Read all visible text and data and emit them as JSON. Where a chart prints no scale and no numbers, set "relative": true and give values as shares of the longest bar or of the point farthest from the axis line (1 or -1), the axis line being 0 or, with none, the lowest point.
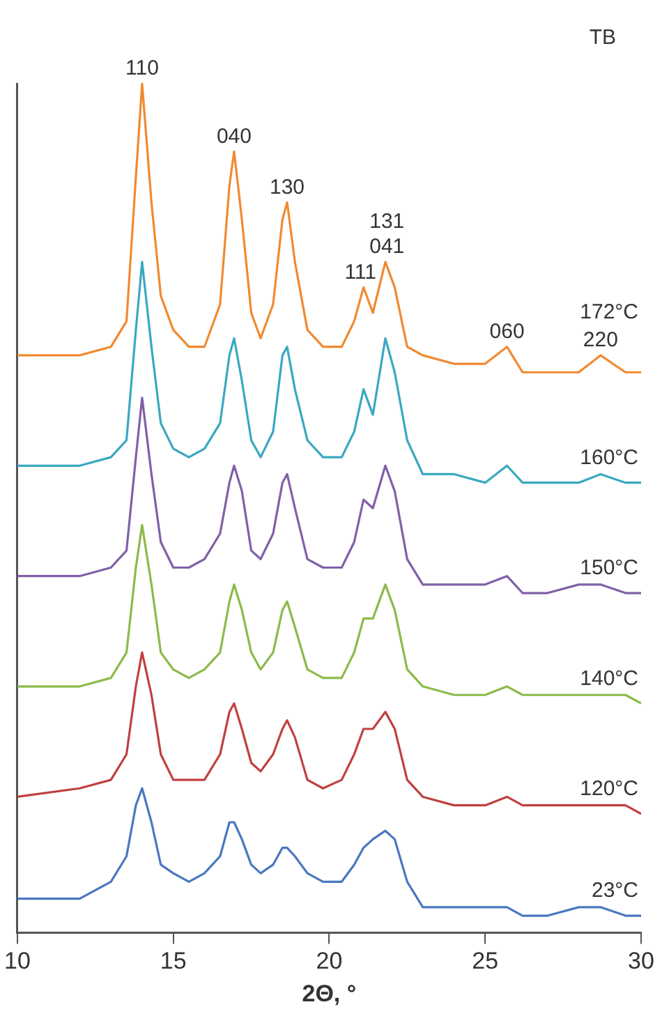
{
  "chart_data": {
    "type": "line",
    "relative": true,
    "xlabel": "2Θ, °",
    "xlim": [
      10,
      30
    ],
    "xticks": [
      10,
      15,
      20,
      25,
      30
    ],
    "grid": false,
    "legend": false,
    "marker": "none",
    "line_style": "solid",
    "x": [
      10,
      12,
      13,
      13.5,
      13.8,
      14,
      14.3,
      14.6,
      15,
      15.5,
      16,
      16.5,
      16.8,
      16.95,
      17.2,
      17.5,
      17.8,
      18.2,
      18.5,
      18.65,
      18.9,
      19.3,
      19.8,
      20.4,
      20.8,
      21.1,
      21.4,
      21.8,
      22.1,
      22.5,
      23,
      24,
      25,
      25.7,
      26.2,
      27,
      28,
      28.7,
      29.5,
      30
    ],
    "series": [
      {
        "name": "172°C",
        "color": "#f08a30",
        "values": [
          0.68,
          0.68,
          0.69,
          0.72,
          0.89,
          1,
          0.86,
          0.75,
          0.71,
          0.69,
          0.69,
          0.74,
          0.88,
          0.92,
          0.84,
          0.73,
          0.7,
          0.74,
          0.84,
          0.86,
          0.79,
          0.71,
          0.69,
          0.69,
          0.72,
          0.76,
          0.73,
          0.79,
          0.76,
          0.69,
          0.68,
          0.67,
          0.67,
          0.69,
          0.66,
          0.66,
          0.66,
          0.68,
          0.66,
          0.66
        ]
      },
      {
        "name": "160°C",
        "color": "#3aa8c0",
        "values": [
          0.55,
          0.55,
          0.56,
          0.58,
          0.71,
          0.79,
          0.69,
          0.6,
          0.57,
          0.56,
          0.57,
          0.6,
          0.68,
          0.7,
          0.65,
          0.58,
          0.56,
          0.59,
          0.68,
          0.69,
          0.64,
          0.58,
          0.56,
          0.56,
          0.59,
          0.64,
          0.61,
          0.7,
          0.66,
          0.58,
          0.54,
          0.54,
          0.53,
          0.55,
          0.53,
          0.53,
          0.53,
          0.54,
          0.53,
          0.53
        ]
      },
      {
        "name": "150°C",
        "color": "#8060a8",
        "values": [
          0.42,
          0.42,
          0.43,
          0.45,
          0.56,
          0.63,
          0.54,
          0.46,
          0.43,
          0.43,
          0.44,
          0.47,
          0.53,
          0.55,
          0.52,
          0.45,
          0.44,
          0.47,
          0.53,
          0.54,
          0.5,
          0.44,
          0.43,
          0.43,
          0.46,
          0.51,
          0.5,
          0.55,
          0.52,
          0.44,
          0.41,
          0.41,
          0.41,
          0.42,
          0.4,
          0.4,
          0.41,
          0.41,
          0.4,
          0.4
        ]
      },
      {
        "name": "140°C",
        "color": "#8cba4a",
        "values": [
          0.29,
          0.29,
          0.3,
          0.33,
          0.43,
          0.48,
          0.41,
          0.33,
          0.31,
          0.3,
          0.31,
          0.33,
          0.39,
          0.41,
          0.38,
          0.33,
          0.31,
          0.33,
          0.38,
          0.39,
          0.36,
          0.31,
          0.3,
          0.3,
          0.33,
          0.37,
          0.37,
          0.41,
          0.38,
          0.31,
          0.29,
          0.28,
          0.28,
          0.29,
          0.28,
          0.28,
          0.28,
          0.28,
          0.28,
          0.27
        ]
      },
      {
        "name": "120°C",
        "color": "#c04040",
        "values": [
          0.16,
          0.17,
          0.18,
          0.21,
          0.29,
          0.33,
          0.28,
          0.21,
          0.18,
          0.18,
          0.18,
          0.21,
          0.26,
          0.27,
          0.24,
          0.2,
          0.19,
          0.21,
          0.24,
          0.25,
          0.23,
          0.18,
          0.17,
          0.18,
          0.21,
          0.24,
          0.24,
          0.26,
          0.24,
          0.18,
          0.16,
          0.15,
          0.15,
          0.16,
          0.15,
          0.15,
          0.15,
          0.15,
          0.15,
          0.14
        ]
      },
      {
        "name": "23°C",
        "color": "#4a78c0",
        "values": [
          0.04,
          0.04,
          0.06,
          0.09,
          0.15,
          0.17,
          0.13,
          0.08,
          0.07,
          0.06,
          0.07,
          0.09,
          0.13,
          0.13,
          0.11,
          0.08,
          0.07,
          0.08,
          0.1,
          0.1,
          0.09,
          0.07,
          0.06,
          0.06,
          0.08,
          0.1,
          0.11,
          0.12,
          0.11,
          0.06,
          0.03,
          0.03,
          0.03,
          0.03,
          0.02,
          0.02,
          0.03,
          0.03,
          0.02,
          0.02
        ]
      }
    ],
    "annotations": [
      {
        "text": "110",
        "x": 14,
        "y": 1
      },
      {
        "text": "040",
        "x": 16.95,
        "y": 0.92
      },
      {
        "text": "130",
        "x": 18.65,
        "y": 0.86
      },
      {
        "text": "111",
        "x": 21.0,
        "y": 0.76
      },
      {
        "text": "131\n041",
        "x": 21.85,
        "y": 0.79
      },
      {
        "text": "060",
        "x": 25.7,
        "y": 0.69
      },
      {
        "text": "220",
        "x": 28.7,
        "y": 0.68
      },
      "TB"
    ]
  }
}
